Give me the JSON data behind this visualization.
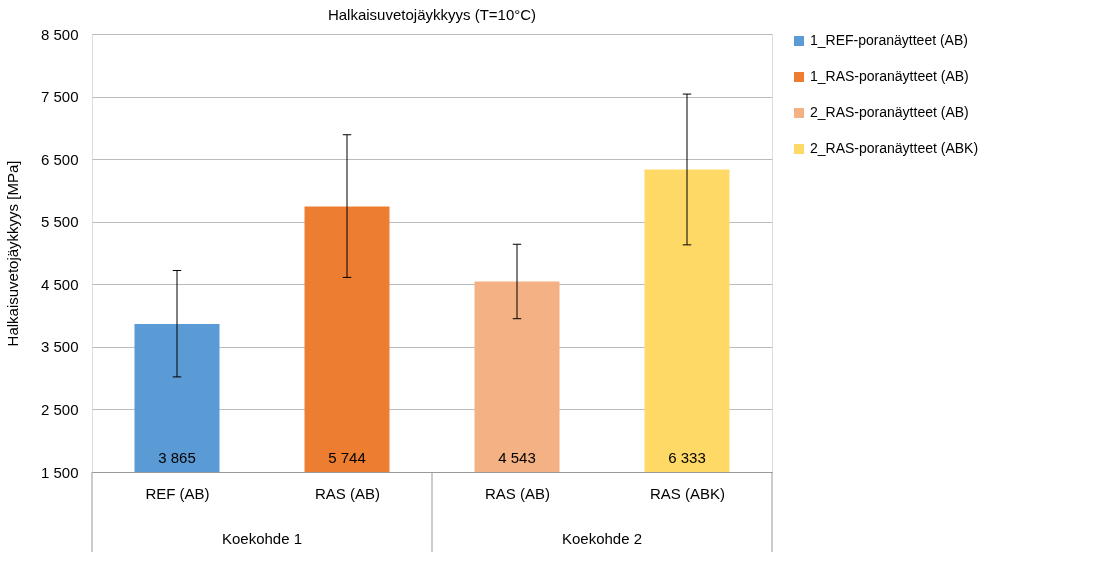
{
  "chart_data": {
    "type": "bar",
    "title": "Halkaisuvetojäykkyys (T=10°C)",
    "ylabel": "Halkaisuvetojäykkyys  [MPa]",
    "categories": [
      "REF (AB)",
      "RAS (AB)",
      "RAS (AB)",
      "RAS (ABK)"
    ],
    "series": [
      {
        "name": "1_REF-poranäytteet (AB)",
        "color": "#5b9bd5",
        "values": [
          3865,
          null,
          null,
          null
        ],
        "value_labels": [
          "3 865",
          null,
          null,
          null
        ],
        "errors": [
          [
            3020,
            4720
          ],
          null,
          null,
          null
        ]
      },
      {
        "name": "1_RAS-poranäytteet (AB)",
        "color": "#ed7d31",
        "values": [
          null,
          5744,
          null,
          null
        ],
        "value_labels": [
          null,
          "5 744",
          null,
          null
        ],
        "errors": [
          null,
          [
            4610,
            6890
          ],
          null,
          null
        ]
      },
      {
        "name": "2_RAS-poranäytteet (AB)",
        "color": "#f4b183",
        "values": [
          null,
          null,
          4543,
          null
        ],
        "value_labels": [
          null,
          null,
          "4 543",
          null
        ],
        "errors": [
          null,
          null,
          [
            3950,
            5140
          ],
          null
        ]
      },
      {
        "name": "2_RAS-poranäytteet (ABK)",
        "color": "#ffd966",
        "values": [
          null,
          null,
          null,
          6333
        ],
        "value_labels": [
          null,
          null,
          null,
          "6 333"
        ],
        "errors": [
          null,
          null,
          null,
          [
            5130,
            7540
          ]
        ]
      }
    ],
    "annotations": [
      "Koekohde 1",
      "Koekohde 2"
    ],
    "ylim": [
      1500,
      8500
    ],
    "yticks": [
      {
        "value": 1500,
        "label": "1 500"
      },
      {
        "value": 2500,
        "label": "2 500"
      },
      {
        "value": 3500,
        "label": "3 500"
      },
      {
        "value": 4500,
        "label": "4 500"
      },
      {
        "value": 5500,
        "label": "5 500"
      },
      {
        "value": 6500,
        "label": "6 500"
      },
      {
        "value": 7500,
        "label": "7 500"
      },
      {
        "value": 8500,
        "label": "8 500"
      }
    ],
    "grid": "y",
    "legend": "right"
  }
}
